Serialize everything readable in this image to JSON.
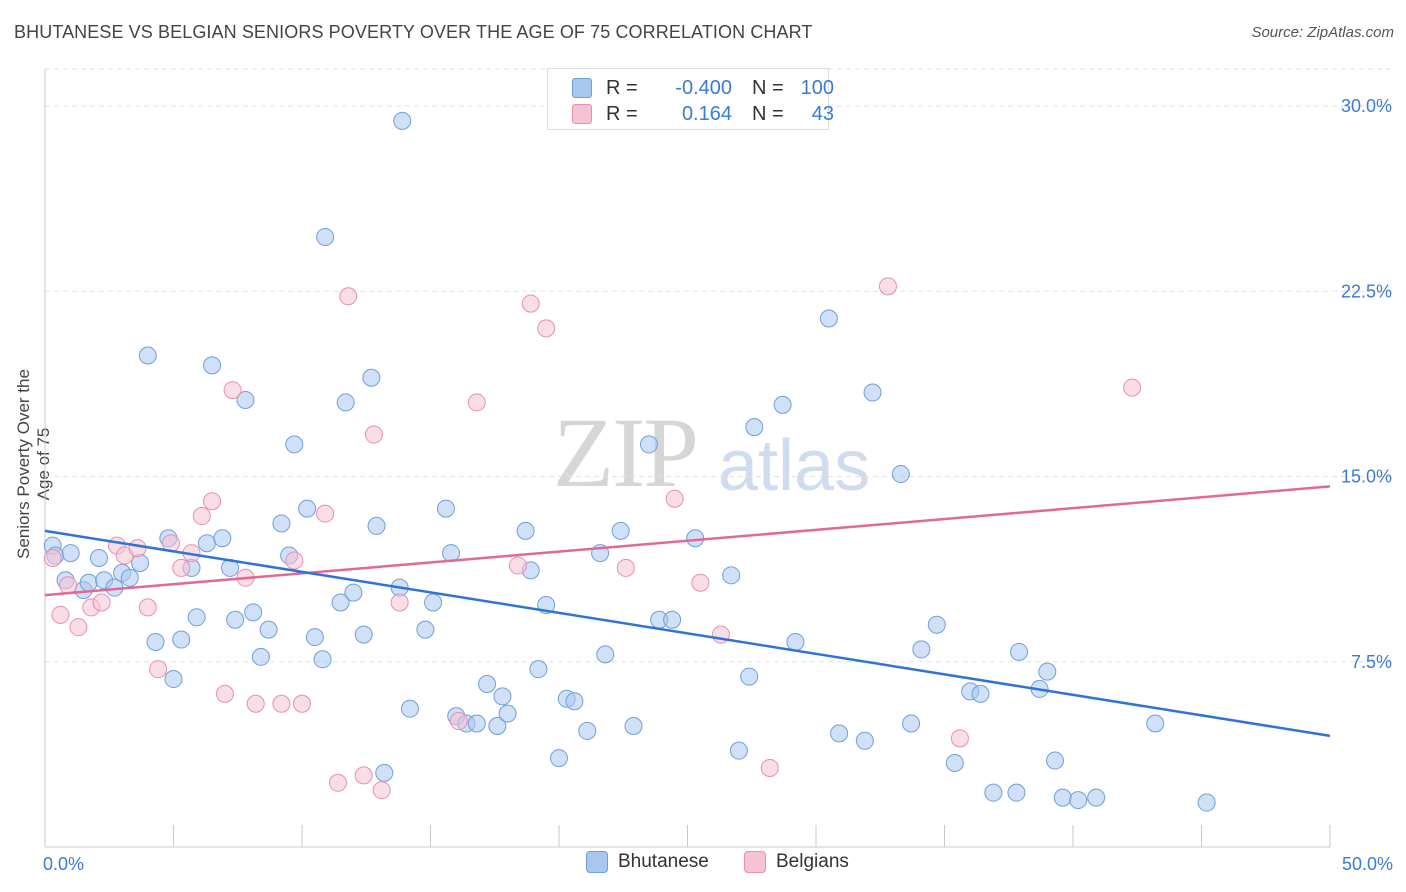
{
  "header": {
    "title": "BHUTANESE VS BELGIAN SENIORS POVERTY OVER THE AGE OF 75 CORRELATION CHART",
    "source": "Source: ZipAtlas.com"
  },
  "watermark": {
    "left": "ZIP",
    "right": "atlas"
  },
  "legend_top": {
    "rows": [
      {
        "r_label": "R =",
        "r_value": "-0.400",
        "n_label": "N =",
        "n_value": "100"
      },
      {
        "r_label": "R =",
        "r_value": "0.164",
        "n_label": "N =",
        "n_value": "43"
      }
    ]
  },
  "legend_bottom": {
    "series_1": "Bhutanese",
    "series_2": "Belgians"
  },
  "colors": {
    "blue_fill": "#a9c6ee",
    "blue_stroke": "#6f9fdc",
    "blue_line": "#2f73d4",
    "pink_fill": "#f6c3d3",
    "pink_stroke": "#e98fae",
    "pink_line": "#e0699a",
    "tick_text": "#3a7bd5",
    "grid": "#e2e2e2"
  },
  "chart_data": {
    "type": "scatter",
    "title": "BHUTANESE VS BELGIAN SENIORS POVERTY OVER THE AGE OF 75 CORRELATION CHART",
    "xlabel": "",
    "ylabel": "Seniors Poverty Over the Age of 75",
    "xlim": [
      0,
      50
    ],
    "ylim": [
      0,
      31.5
    ],
    "x_tick_labels": [
      "0.0%",
      "50.0%"
    ],
    "y_ticks": [
      7.5,
      15.0,
      22.5,
      30.0
    ],
    "y_tick_labels": [
      "7.5%",
      "15.0%",
      "22.5%",
      "30.0%"
    ],
    "grid": "horizontal dashed",
    "legend": "top-center",
    "series": [
      {
        "name": "Bhutanese",
        "r": -0.4,
        "n": 100,
        "trend": {
          "x": [
            0,
            50
          ],
          "y": [
            12.8,
            4.5
          ]
        },
        "points": [
          [
            0.3,
            12.2
          ],
          [
            0.4,
            11.8
          ],
          [
            0.8,
            10.8
          ],
          [
            1.0,
            11.9
          ],
          [
            1.5,
            10.4
          ],
          [
            1.7,
            10.7
          ],
          [
            2.1,
            11.7
          ],
          [
            2.3,
            10.8
          ],
          [
            2.7,
            10.5
          ],
          [
            3.0,
            11.1
          ],
          [
            3.3,
            10.9
          ],
          [
            3.7,
            11.5
          ],
          [
            4.0,
            19.9
          ],
          [
            4.3,
            8.3
          ],
          [
            4.8,
            12.5
          ],
          [
            5.0,
            6.8
          ],
          [
            5.3,
            8.4
          ],
          [
            5.7,
            11.3
          ],
          [
            5.9,
            9.3
          ],
          [
            6.3,
            12.3
          ],
          [
            6.5,
            19.5
          ],
          [
            6.9,
            12.5
          ],
          [
            7.2,
            11.3
          ],
          [
            7.4,
            9.2
          ],
          [
            7.8,
            18.1
          ],
          [
            8.1,
            9.5
          ],
          [
            8.4,
            7.7
          ],
          [
            8.7,
            8.8
          ],
          [
            9.2,
            13.1
          ],
          [
            9.5,
            11.8
          ],
          [
            9.7,
            16.3
          ],
          [
            10.2,
            13.7
          ],
          [
            10.5,
            8.5
          ],
          [
            10.8,
            7.6
          ],
          [
            10.9,
            24.7
          ],
          [
            11.5,
            9.9
          ],
          [
            11.7,
            18.0
          ],
          [
            12.0,
            10.3
          ],
          [
            12.4,
            8.6
          ],
          [
            12.7,
            19.0
          ],
          [
            12.9,
            13.0
          ],
          [
            13.2,
            3.0
          ],
          [
            13.8,
            10.5
          ],
          [
            13.9,
            29.4
          ],
          [
            14.2,
            5.6
          ],
          [
            14.8,
            8.8
          ],
          [
            15.1,
            9.9
          ],
          [
            15.6,
            13.7
          ],
          [
            15.8,
            11.9
          ],
          [
            16.0,
            5.3
          ],
          [
            16.4,
            5.0
          ],
          [
            16.8,
            5.0
          ],
          [
            17.2,
            6.6
          ],
          [
            17.6,
            4.9
          ],
          [
            17.8,
            6.1
          ],
          [
            18.0,
            5.4
          ],
          [
            18.7,
            12.8
          ],
          [
            18.9,
            11.2
          ],
          [
            19.2,
            7.2
          ],
          [
            19.5,
            9.8
          ],
          [
            20.0,
            3.6
          ],
          [
            20.3,
            6.0
          ],
          [
            20.6,
            5.9
          ],
          [
            21.1,
            4.7
          ],
          [
            21.6,
            11.9
          ],
          [
            21.8,
            7.8
          ],
          [
            22.4,
            12.8
          ],
          [
            22.9,
            4.9
          ],
          [
            23.5,
            16.3
          ],
          [
            23.9,
            9.2
          ],
          [
            24.4,
            9.2
          ],
          [
            25.3,
            12.5
          ],
          [
            26.7,
            11.0
          ],
          [
            27.0,
            3.9
          ],
          [
            27.4,
            6.9
          ],
          [
            27.6,
            17.0
          ],
          [
            28.7,
            17.9
          ],
          [
            29.2,
            8.3
          ],
          [
            30.5,
            21.4
          ],
          [
            30.9,
            4.6
          ],
          [
            31.9,
            4.3
          ],
          [
            32.2,
            18.4
          ],
          [
            33.3,
            15.1
          ],
          [
            33.7,
            5.0
          ],
          [
            34.1,
            8.0
          ],
          [
            34.7,
            9.0
          ],
          [
            35.4,
            3.4
          ],
          [
            36.0,
            6.3
          ],
          [
            36.4,
            6.2
          ],
          [
            36.9,
            2.2
          ],
          [
            37.8,
            2.2
          ],
          [
            37.9,
            7.9
          ],
          [
            38.7,
            6.4
          ],
          [
            39.0,
            7.1
          ],
          [
            39.3,
            3.5
          ],
          [
            39.6,
            2.0
          ],
          [
            40.2,
            1.9
          ],
          [
            40.9,
            2.0
          ],
          [
            43.2,
            5.0
          ],
          [
            45.2,
            1.8
          ]
        ]
      },
      {
        "name": "Belgians",
        "r": 0.164,
        "n": 43,
        "trend": {
          "x": [
            0,
            50
          ],
          "y": [
            10.2,
            14.6
          ]
        },
        "points": [
          [
            0.3,
            11.7
          ],
          [
            0.6,
            9.4
          ],
          [
            0.9,
            10.6
          ],
          [
            1.3,
            8.9
          ],
          [
            1.8,
            9.7
          ],
          [
            2.2,
            9.9
          ],
          [
            2.8,
            12.2
          ],
          [
            3.1,
            11.8
          ],
          [
            3.6,
            12.1
          ],
          [
            4.0,
            9.7
          ],
          [
            4.4,
            7.2
          ],
          [
            4.9,
            12.3
          ],
          [
            5.3,
            11.3
          ],
          [
            5.7,
            11.9
          ],
          [
            6.1,
            13.4
          ],
          [
            6.5,
            14.0
          ],
          [
            7.0,
            6.2
          ],
          [
            7.3,
            18.5
          ],
          [
            7.8,
            10.9
          ],
          [
            8.2,
            5.8
          ],
          [
            9.2,
            5.8
          ],
          [
            9.7,
            11.6
          ],
          [
            10.0,
            5.8
          ],
          [
            10.9,
            13.5
          ],
          [
            11.4,
            2.6
          ],
          [
            11.8,
            22.3
          ],
          [
            12.4,
            2.9
          ],
          [
            12.8,
            16.7
          ],
          [
            13.1,
            2.3
          ],
          [
            13.8,
            9.9
          ],
          [
            16.1,
            5.1
          ],
          [
            16.8,
            18.0
          ],
          [
            18.4,
            11.4
          ],
          [
            18.9,
            22.0
          ],
          [
            19.5,
            21.0
          ],
          [
            22.6,
            11.3
          ],
          [
            24.5,
            14.1
          ],
          [
            25.5,
            10.7
          ],
          [
            26.3,
            8.6
          ],
          [
            28.2,
            3.2
          ],
          [
            32.8,
            22.7
          ],
          [
            35.6,
            4.4
          ],
          [
            42.3,
            18.6
          ]
        ]
      }
    ]
  }
}
